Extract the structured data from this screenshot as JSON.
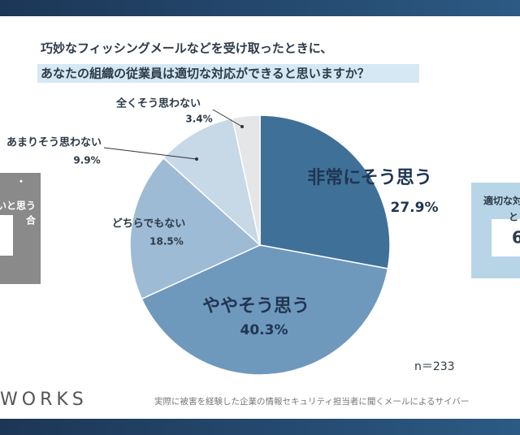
{
  "chart_data": {
    "type": "pie",
    "title": [
      "巧妙なフィッシングメールなどを受け取ったときに、",
      "あなたの組織の従業員は適切な対応ができると思いますか？"
    ],
    "categories": [
      "非常にそう思う",
      "ややそう思う",
      "どちらでもない",
      "あまりそう思わない",
      "全くそう思わない"
    ],
    "values": [
      27.9,
      40.3,
      18.5,
      9.9,
      3.4
    ],
    "value_labels": [
      "27.9%",
      "40.3%",
      "18.5%",
      "9.9%",
      "3.4%"
    ],
    "colors": [
      "#3f7198",
      "#6f98bd",
      "#9ebbd5",
      "#c7d8e7",
      "#e5e6e7"
    ],
    "note": "n＝233"
  },
  "left_box": {
    "lines": [
      "・",
      "いと思う",
      "合"
    ]
  },
  "right_box": {
    "lines": [
      "適切な対",
      "と",
      "6"
    ]
  },
  "logo": "WORKS",
  "footer": "実際に被害を経験した企業の情報セキュリティ担当者に聞くメールによるサイバー"
}
